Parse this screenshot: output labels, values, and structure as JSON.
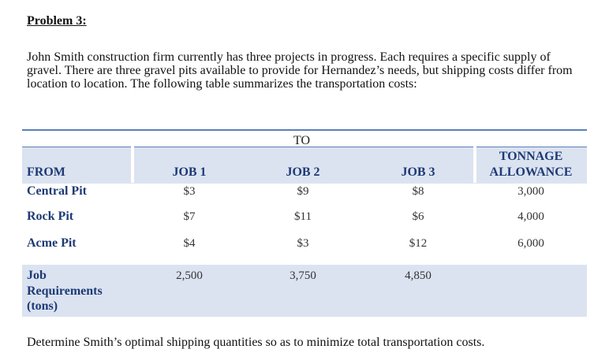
{
  "problem": {
    "title": "Problem 3:",
    "intro": "John Smith construction firm currently has three projects in progress. Each requires a specific supply of gravel. There are three gravel pits available to provide for Hernandez’s needs, but shipping costs differ from location to location. The following table summarizes the transportation costs:",
    "closing": "Determine Smith’s optimal shipping quantities so as to minimize total transportation costs."
  },
  "table": {
    "to_label": "TO",
    "from_label": "FROM",
    "jobs": [
      "JOB 1",
      "JOB 2",
      "JOB 3"
    ],
    "tonnage_line1": "TONNAGE",
    "tonnage_line2": "ALLOWANCE",
    "rows": [
      {
        "name": "Central Pit",
        "costs": [
          "$3",
          "$9",
          "$8"
        ],
        "allowance": "3,000"
      },
      {
        "name": "Rock Pit",
        "costs": [
          "$7",
          "$11",
          "$6"
        ],
        "allowance": "4,000"
      },
      {
        "name": "Acme Pit",
        "costs": [
          "$4",
          "$3",
          "$12"
        ],
        "allowance": "6,000"
      }
    ],
    "requirements": {
      "label_line1": "Job",
      "label_line2": "Requirements",
      "label_line3": "(tons)",
      "values": [
        "2,500",
        "3,750",
        "4,850"
      ]
    }
  }
}
